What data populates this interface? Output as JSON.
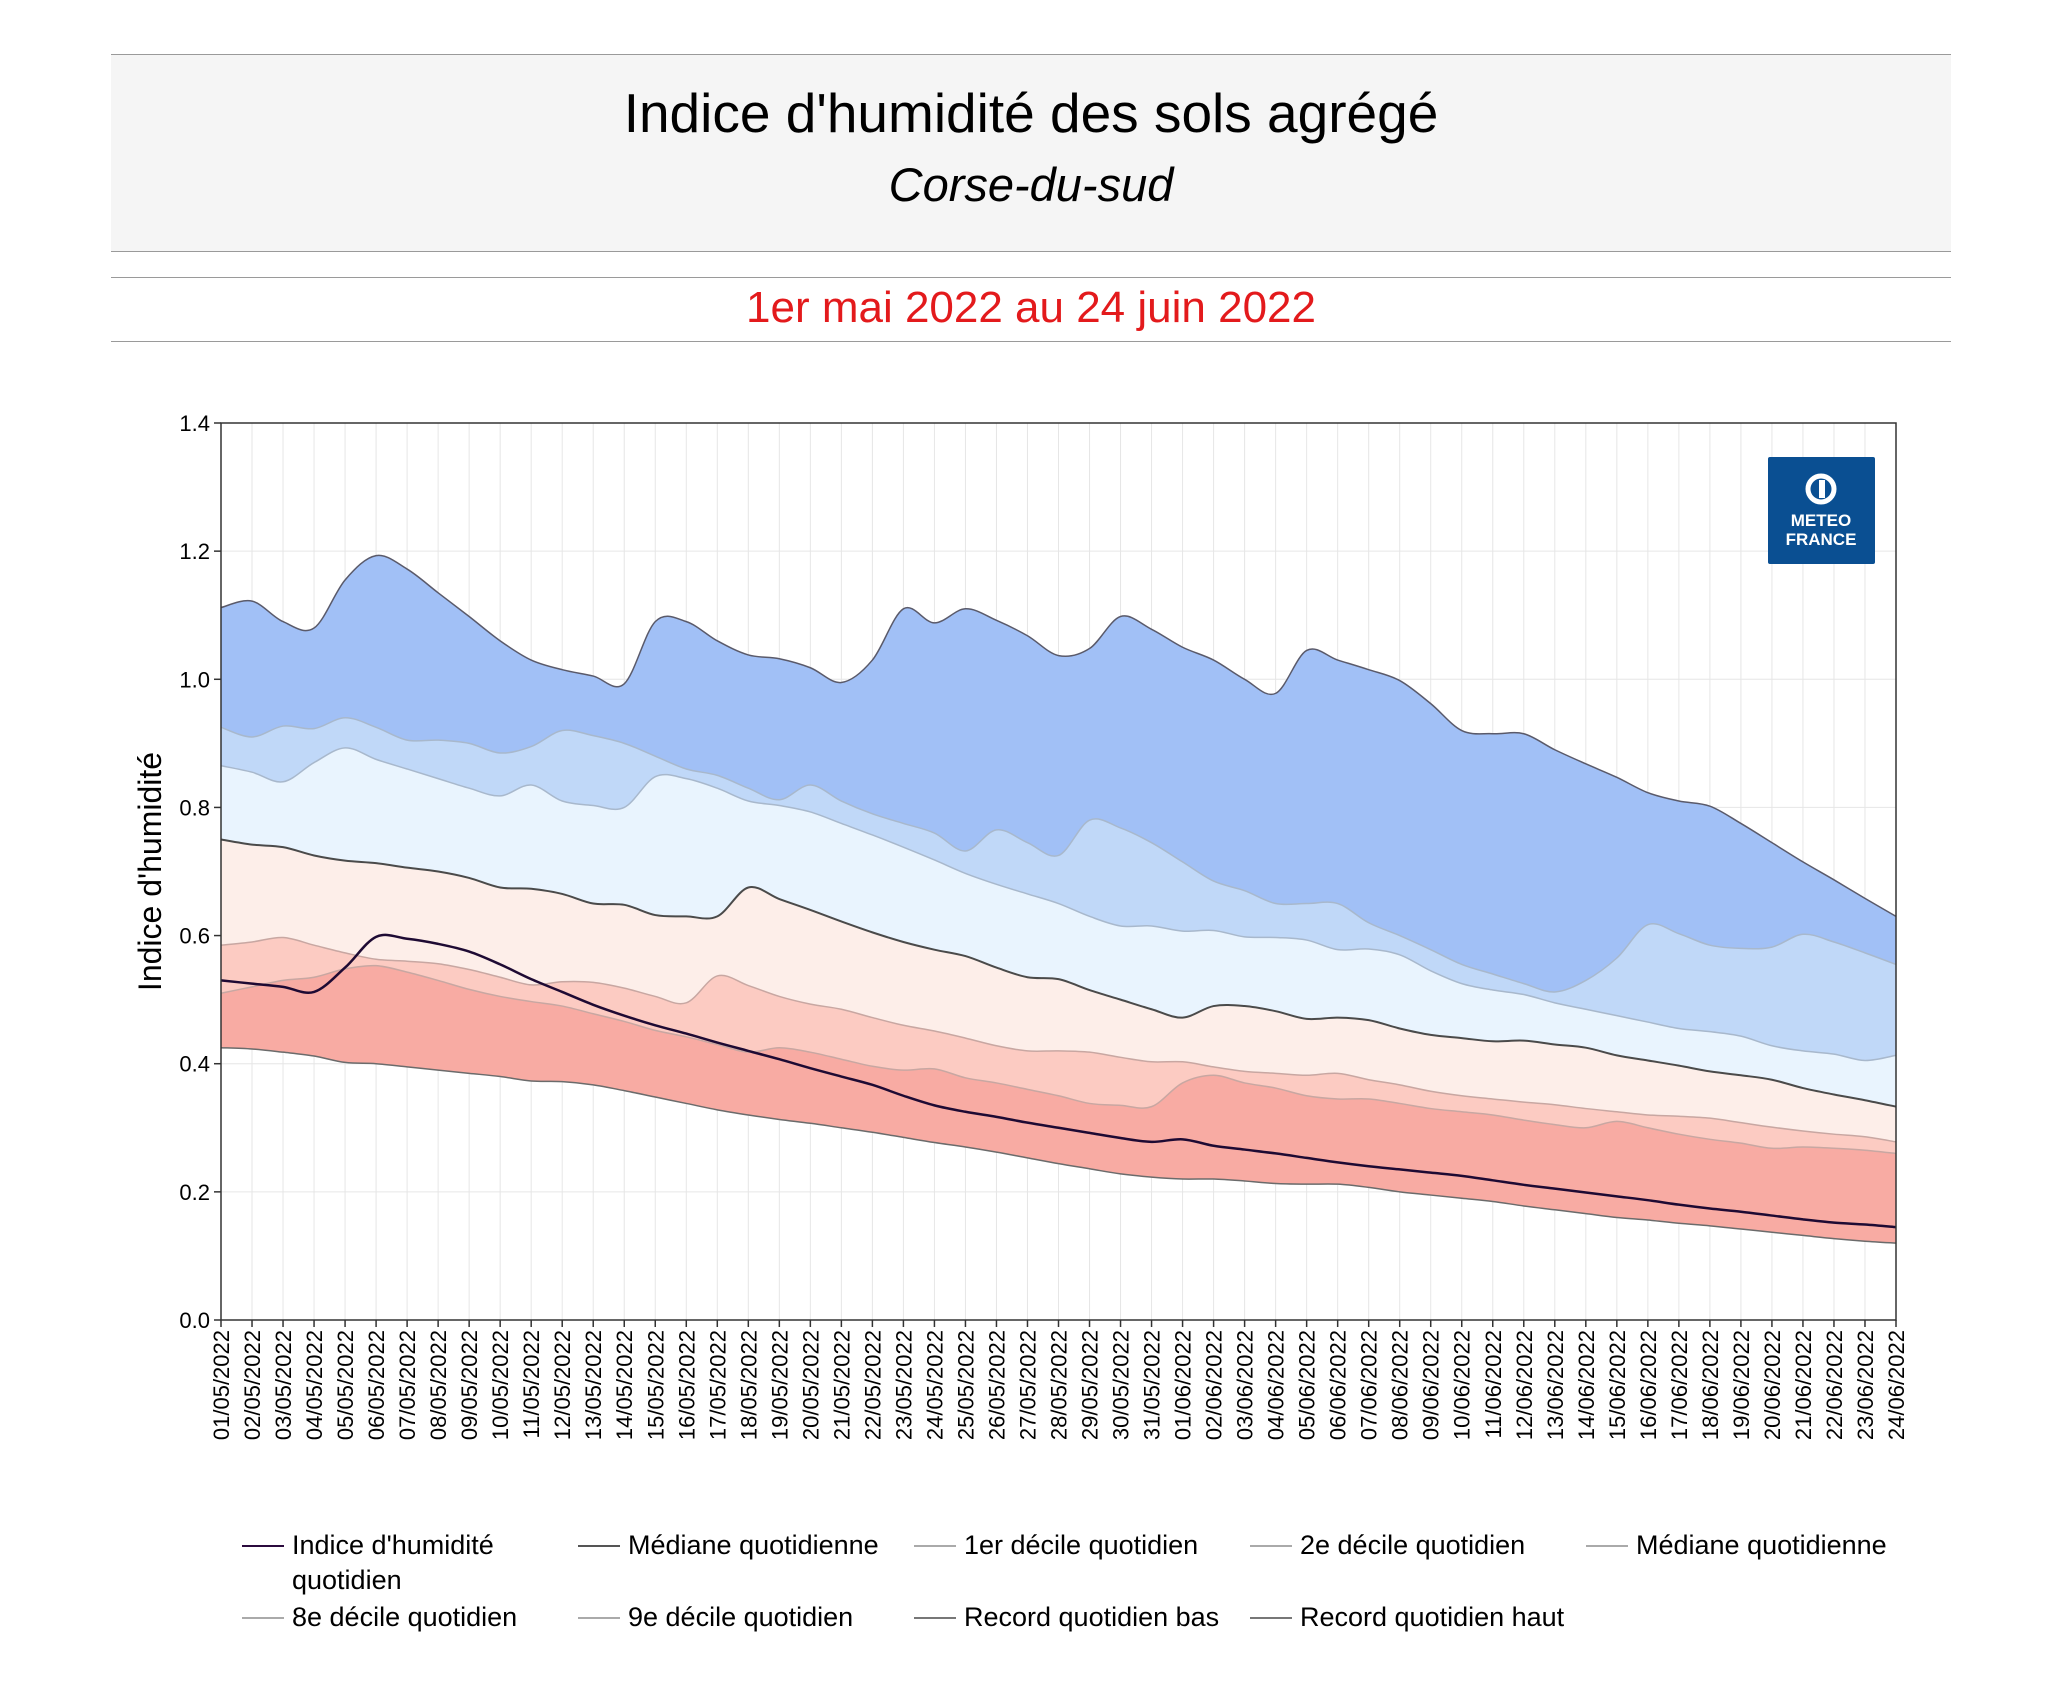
{
  "header": {
    "title": "Indice d'humidité des sols agrégé",
    "subtitle": "Corse-du-sud",
    "period": "1er mai 2022 au 24 juin 2022"
  },
  "logo": {
    "line1": "METEO",
    "line2": "FRANCE",
    "color": "#0a4f92"
  },
  "chart_data": {
    "type": "area",
    "ylabel": "Indice d'humidité",
    "xlabel": "",
    "ylim": [
      0,
      1.4
    ],
    "y_ticks": [
      "0.0",
      "0.2",
      "0.4",
      "0.6",
      "0.8",
      "1.0",
      "1.2",
      "1.4"
    ],
    "grid": true,
    "legend_position": "bottom",
    "x": [
      "01/05/2022",
      "02/05/2022",
      "03/05/2022",
      "04/05/2022",
      "05/05/2022",
      "06/05/2022",
      "07/05/2022",
      "08/05/2022",
      "09/05/2022",
      "10/05/2022",
      "11/05/2022",
      "12/05/2022",
      "13/05/2022",
      "14/05/2022",
      "15/05/2022",
      "16/05/2022",
      "17/05/2022",
      "18/05/2022",
      "19/05/2022",
      "20/05/2022",
      "21/05/2022",
      "22/05/2022",
      "23/05/2022",
      "24/05/2022",
      "25/05/2022",
      "26/05/2022",
      "27/05/2022",
      "28/05/2022",
      "29/05/2022",
      "30/05/2022",
      "31/05/2022",
      "01/06/2022",
      "02/06/2022",
      "03/06/2022",
      "04/06/2022",
      "05/06/2022",
      "06/06/2022",
      "07/06/2022",
      "08/06/2022",
      "09/06/2022",
      "10/06/2022",
      "11/06/2022",
      "12/06/2022",
      "13/06/2022",
      "14/06/2022",
      "15/06/2022",
      "16/06/2022",
      "17/06/2022",
      "18/06/2022",
      "19/06/2022",
      "20/06/2022",
      "21/06/2022",
      "22/06/2022",
      "23/06/2022",
      "24/06/2022"
    ],
    "band_colors": [
      "#f8aba3",
      "#fccbc2",
      "#fdeee9",
      "#e9f4fe",
      "#c0d8f8",
      "#a1c0f6"
    ],
    "series": [
      {
        "name": "Record quotidien bas",
        "values": [
          0.425,
          0.423,
          0.418,
          0.412,
          0.402,
          0.4,
          0.395,
          0.39,
          0.385,
          0.38,
          0.373,
          0.372,
          0.367,
          0.358,
          0.348,
          0.338,
          0.328,
          0.32,
          0.313,
          0.307,
          0.3,
          0.293,
          0.285,
          0.277,
          0.27,
          0.262,
          0.253,
          0.244,
          0.236,
          0.228,
          0.223,
          0.22,
          0.22,
          0.217,
          0.213,
          0.212,
          0.212,
          0.207,
          0.2,
          0.195,
          0.19,
          0.185,
          0.178,
          0.172,
          0.166,
          0.16,
          0.156,
          0.151,
          0.147,
          0.142,
          0.137,
          0.132,
          0.127,
          0.123,
          0.12
        ]
      },
      {
        "name": "1er décile quotidien",
        "values": [
          0.51,
          0.52,
          0.53,
          0.535,
          0.548,
          0.553,
          0.543,
          0.53,
          0.516,
          0.505,
          0.497,
          0.49,
          0.478,
          0.466,
          0.452,
          0.442,
          0.43,
          0.418,
          0.425,
          0.418,
          0.407,
          0.396,
          0.39,
          0.392,
          0.378,
          0.37,
          0.36,
          0.35,
          0.338,
          0.335,
          0.333,
          0.37,
          0.382,
          0.37,
          0.362,
          0.35,
          0.345,
          0.345,
          0.338,
          0.33,
          0.325,
          0.32,
          0.312,
          0.305,
          0.3,
          0.31,
          0.3,
          0.29,
          0.282,
          0.276,
          0.268,
          0.27,
          0.268,
          0.265,
          0.26
        ]
      },
      {
        "name": "2e décile quotidien",
        "values": [
          0.585,
          0.59,
          0.597,
          0.585,
          0.573,
          0.563,
          0.56,
          0.556,
          0.547,
          0.535,
          0.523,
          0.528,
          0.527,
          0.518,
          0.505,
          0.495,
          0.537,
          0.522,
          0.505,
          0.493,
          0.485,
          0.472,
          0.46,
          0.451,
          0.44,
          0.428,
          0.42,
          0.42,
          0.418,
          0.41,
          0.403,
          0.403,
          0.395,
          0.388,
          0.385,
          0.382,
          0.385,
          0.375,
          0.367,
          0.357,
          0.35,
          0.345,
          0.34,
          0.336,
          0.33,
          0.325,
          0.32,
          0.318,
          0.315,
          0.308,
          0.301,
          0.295,
          0.29,
          0.286,
          0.278
        ]
      },
      {
        "name": "Médiane quotidienne",
        "values": [
          0.75,
          0.742,
          0.738,
          0.725,
          0.717,
          0.713,
          0.706,
          0.7,
          0.69,
          0.675,
          0.673,
          0.665,
          0.65,
          0.648,
          0.632,
          0.63,
          0.63,
          0.675,
          0.657,
          0.64,
          0.622,
          0.605,
          0.59,
          0.578,
          0.568,
          0.55,
          0.535,
          0.532,
          0.515,
          0.5,
          0.485,
          0.472,
          0.49,
          0.49,
          0.482,
          0.47,
          0.472,
          0.468,
          0.455,
          0.445,
          0.44,
          0.435,
          0.436,
          0.43,
          0.425,
          0.413,
          0.405,
          0.397,
          0.388,
          0.382,
          0.375,
          0.362,
          0.352,
          0.343,
          0.333
        ]
      },
      {
        "name": "8e décile quotidien",
        "values": [
          0.865,
          0.855,
          0.84,
          0.87,
          0.893,
          0.875,
          0.86,
          0.845,
          0.83,
          0.818,
          0.835,
          0.81,
          0.803,
          0.8,
          0.848,
          0.845,
          0.83,
          0.81,
          0.803,
          0.793,
          0.775,
          0.757,
          0.738,
          0.718,
          0.697,
          0.68,
          0.665,
          0.65,
          0.63,
          0.615,
          0.615,
          0.607,
          0.608,
          0.598,
          0.597,
          0.593,
          0.578,
          0.579,
          0.57,
          0.545,
          0.525,
          0.515,
          0.508,
          0.495,
          0.485,
          0.475,
          0.465,
          0.455,
          0.45,
          0.443,
          0.428,
          0.42,
          0.415,
          0.405,
          0.413
        ]
      },
      {
        "name": "9e décile quotidien",
        "values": [
          0.925,
          0.91,
          0.927,
          0.923,
          0.94,
          0.925,
          0.905,
          0.905,
          0.9,
          0.885,
          0.895,
          0.92,
          0.912,
          0.9,
          0.88,
          0.86,
          0.85,
          0.83,
          0.812,
          0.835,
          0.81,
          0.79,
          0.775,
          0.76,
          0.732,
          0.765,
          0.745,
          0.725,
          0.78,
          0.768,
          0.745,
          0.715,
          0.685,
          0.67,
          0.65,
          0.65,
          0.65,
          0.62,
          0.6,
          0.578,
          0.555,
          0.54,
          0.525,
          0.512,
          0.53,
          0.565,
          0.617,
          0.603,
          0.585,
          0.58,
          0.582,
          0.602,
          0.59,
          0.573,
          0.555
        ]
      },
      {
        "name": "Record quotidien haut",
        "values": [
          1.112,
          1.122,
          1.09,
          1.08,
          1.155,
          1.193,
          1.172,
          1.135,
          1.098,
          1.06,
          1.03,
          1.015,
          1.005,
          0.993,
          1.09,
          1.09,
          1.06,
          1.038,
          1.032,
          1.018,
          0.995,
          1.03,
          1.11,
          1.088,
          1.11,
          1.092,
          1.068,
          1.037,
          1.048,
          1.098,
          1.078,
          1.05,
          1.03,
          1.0,
          0.978,
          1.045,
          1.03,
          1.015,
          0.998,
          0.962,
          0.92,
          0.915,
          0.915,
          0.89,
          0.868,
          0.847,
          0.823,
          0.81,
          0.802,
          0.775,
          0.745,
          0.715,
          0.687,
          0.658,
          0.63
        ]
      },
      {
        "name": "Indice d'humidité quotidien",
        "values": [
          0.53,
          0.525,
          0.52,
          0.512,
          0.55,
          0.598,
          0.595,
          0.587,
          0.575,
          0.555,
          0.532,
          0.512,
          0.492,
          0.475,
          0.46,
          0.447,
          0.433,
          0.42,
          0.407,
          0.393,
          0.38,
          0.367,
          0.35,
          0.335,
          0.325,
          0.317,
          0.308,
          0.3,
          0.292,
          0.284,
          0.278,
          0.282,
          0.272,
          0.266,
          0.26,
          0.253,
          0.246,
          0.24,
          0.235,
          0.23,
          0.225,
          0.218,
          0.211,
          0.205,
          0.199,
          0.193,
          0.187,
          0.18,
          0.174,
          0.169,
          0.163,
          0.157,
          0.152,
          0.149,
          0.145
        ]
      }
    ],
    "legend": [
      {
        "label": "Indice d'humidité quotidien",
        "color": "#2b0a3d"
      },
      {
        "label": "Médiane quotidienne",
        "color": "#555555"
      },
      {
        "label": "1er décile quotidien",
        "color": "#aaaaaa"
      },
      {
        "label": "2e décile quotidien",
        "color": "#aaaaaa"
      },
      {
        "label": "Médiane quotidienne",
        "color": "#aaaaaa"
      },
      {
        "label": "8e décile quotidien",
        "color": "#aaaaaa"
      },
      {
        "label": "9e décile quotidien",
        "color": "#aaaaaa"
      },
      {
        "label": "Record quotidien bas",
        "color": "#777777"
      },
      {
        "label": "Record quotidien haut",
        "color": "#777777"
      }
    ]
  }
}
